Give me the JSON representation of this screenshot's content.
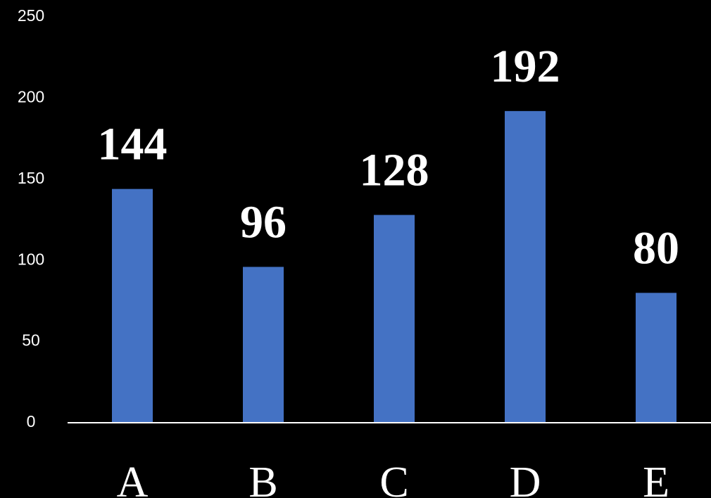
{
  "chart_data": {
    "type": "bar",
    "categories": [
      "A",
      "B",
      "C",
      "D",
      "E"
    ],
    "values": [
      144,
      96,
      128,
      192,
      80
    ],
    "ylim": [
      0,
      250
    ],
    "yticks": [
      0,
      50,
      100,
      150,
      200,
      250
    ],
    "grid": false,
    "legend": "none",
    "title": "",
    "xlabel": "",
    "ylabel": "",
    "colors": {
      "background": "#000000",
      "bar": "#4472C4",
      "text": "#FFFFFF",
      "axis": "#FFFFFF"
    }
  }
}
